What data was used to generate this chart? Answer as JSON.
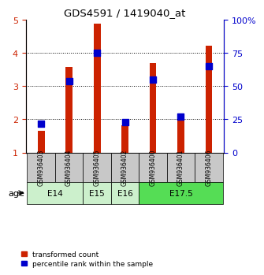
{
  "title": "GDS4591 / 1419040_at",
  "samples": [
    "GSM936403",
    "GSM936404",
    "GSM936405",
    "GSM936402",
    "GSM936400",
    "GSM936401",
    "GSM936406"
  ],
  "red_values": [
    1.65,
    3.58,
    4.88,
    1.82,
    3.7,
    2.02,
    4.22
  ],
  "blue_percentiles": [
    22,
    54,
    75,
    23,
    55,
    27,
    65
  ],
  "ylim_left": [
    1,
    5
  ],
  "ylim_right": [
    0,
    100
  ],
  "yticks_left": [
    1,
    2,
    3,
    4,
    5
  ],
  "yticks_right": [
    0,
    25,
    50,
    75,
    100
  ],
  "age_groups": [
    {
      "label": "E14",
      "samples": [
        0,
        1
      ],
      "color": "#ccf0cc"
    },
    {
      "label": "E15",
      "samples": [
        2
      ],
      "color": "#ccf0cc"
    },
    {
      "label": "E16",
      "samples": [
        3
      ],
      "color": "#ccf0cc"
    },
    {
      "label": "E17.5",
      "samples": [
        4,
        5,
        6
      ],
      "color": "#55dd55"
    }
  ],
  "bar_color": "#cc2200",
  "dot_color": "#0000cc",
  "bar_width": 0.25,
  "dot_size": 30,
  "figsize": [
    3.38,
    3.54
  ],
  "dpi": 100
}
